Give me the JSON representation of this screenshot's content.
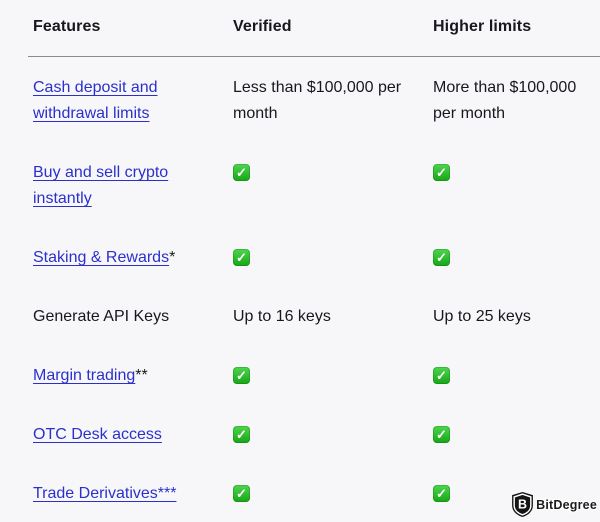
{
  "colors": {
    "background": "#f7f7f9",
    "text": "#17171f",
    "link": "#2b30cc",
    "divider": "#8a8a92",
    "check_green_top": "#4fd64f",
    "check_green_bottom": "#16a616"
  },
  "table": {
    "columns": [
      "Features",
      "Verified",
      "Higher limits"
    ],
    "rows": [
      {
        "feature": {
          "label": "Cash deposit and withdrawal limits",
          "is_link": true,
          "suffix": ""
        },
        "verified": {
          "type": "text",
          "value": "Less than $100,000 per month"
        },
        "higher_limits": {
          "type": "text",
          "value": "More than $100,000 per month"
        }
      },
      {
        "feature": {
          "label": "Buy and sell crypto instantly",
          "is_link": true,
          "suffix": ""
        },
        "verified": {
          "type": "check"
        },
        "higher_limits": {
          "type": "check"
        }
      },
      {
        "feature": {
          "label": "Staking & Rewards",
          "is_link": true,
          "suffix": "*"
        },
        "verified": {
          "type": "check"
        },
        "higher_limits": {
          "type": "check"
        }
      },
      {
        "feature": {
          "label": "Generate API Keys",
          "is_link": false,
          "suffix": ""
        },
        "verified": {
          "type": "text",
          "value": "Up to 16 keys"
        },
        "higher_limits": {
          "type": "text",
          "value": "Up to 25 keys"
        }
      },
      {
        "feature": {
          "label": "Margin trading",
          "is_link": true,
          "suffix": "**"
        },
        "verified": {
          "type": "check"
        },
        "higher_limits": {
          "type": "check"
        }
      },
      {
        "feature": {
          "label": "OTC Desk access",
          "is_link": true,
          "suffix": ""
        },
        "verified": {
          "type": "check"
        },
        "higher_limits": {
          "type": "check"
        }
      },
      {
        "feature": {
          "label": "Trade Derivatives***",
          "is_link": true,
          "suffix": ""
        },
        "verified": {
          "type": "check"
        },
        "higher_limits": {
          "type": "check"
        }
      }
    ]
  },
  "icons": {
    "check_glyph": "✓"
  },
  "watermark": {
    "brand": "BitDegree",
    "logo_letter": "B"
  }
}
